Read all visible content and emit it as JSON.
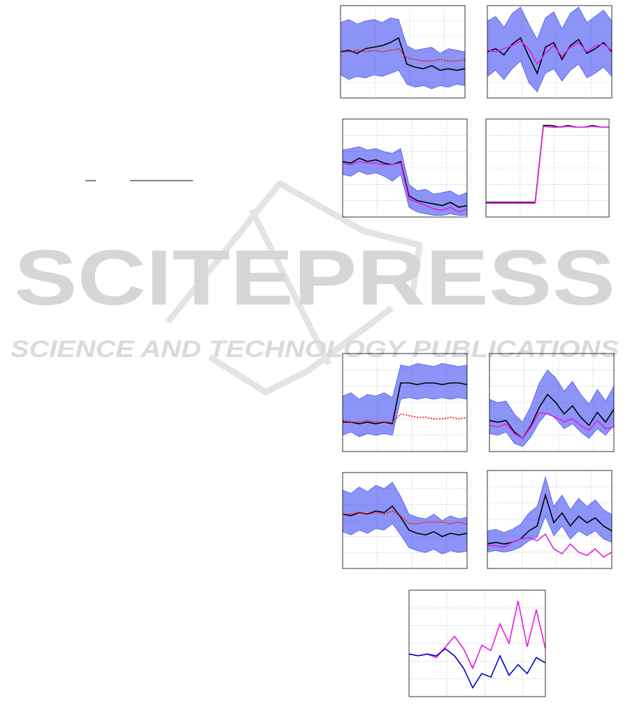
{
  "watermark": {
    "title": "SCITEPRESS",
    "subtitle": "SCIENCE AND TECHNOLOGY PUBLICATIONS"
  },
  "chart_data": [
    {
      "type": "line",
      "xlim": [
        0,
        3.6
      ],
      "ylim": [
        0,
        6
      ],
      "xticks": [
        1,
        2,
        3
      ],
      "yticks": [
        1,
        2,
        3,
        4,
        5
      ],
      "grid": true,
      "x": [
        0,
        0.24,
        0.48,
        0.72,
        0.96,
        1.2,
        1.44,
        1.68,
        1.92,
        2.16,
        2.4,
        2.64,
        2.88,
        3.12,
        3.36,
        3.6
      ],
      "bands": [
        {
          "color": "#2f3cf0",
          "lower": [
            1.5,
            1.2,
            1.4,
            1.3,
            1.5,
            1.4,
            1.6,
            1.8,
            0.9,
            0.7,
            0.8,
            0.6,
            0.8,
            0.7,
            0.9,
            0.8
          ],
          "upper": [
            4.9,
            5.1,
            4.8,
            5.0,
            5.1,
            4.9,
            5.2,
            5.1,
            3.4,
            3.1,
            3.2,
            3.3,
            2.9,
            3.2,
            3.1,
            3.0
          ]
        }
      ],
      "series": [
        {
          "color": "#000000",
          "values": [
            3,
            3.1,
            2.9,
            3.2,
            3.3,
            3.4,
            3.6,
            3.9,
            2.2,
            2.0,
            1.9,
            2.1,
            1.8,
            1.9,
            1.8,
            1.9
          ]
        },
        {
          "color": "#ff0000",
          "dashed": true,
          "values": [
            3,
            3.0,
            3.1,
            3.0,
            3.1,
            3.0,
            3.1,
            3.2,
            2.6,
            2.5,
            2.4,
            2.4,
            2.5,
            2.4,
            2.4,
            2.5
          ]
        }
      ]
    },
    {
      "type": "line",
      "xlim": [
        0,
        3.6
      ],
      "ylim": [
        0,
        6
      ],
      "xticks": [
        1,
        2,
        3
      ],
      "yticks": [
        1,
        2,
        3,
        4,
        5
      ],
      "grid": true,
      "x": [
        0,
        0.24,
        0.48,
        0.72,
        0.96,
        1.2,
        1.44,
        1.68,
        1.92,
        2.16,
        2.4,
        2.64,
        2.88,
        3.12,
        3.36,
        3.6
      ],
      "bands": [
        {
          "color": "#2f3cf0",
          "lower": [
            1.4,
            1.8,
            1.2,
            1.9,
            2.4,
            1.0,
            0.4,
            1.6,
            1.9,
            1.1,
            1.8,
            2.2,
            1.3,
            1.6,
            2.0,
            1.4
          ],
          "upper": [
            5.0,
            5.3,
            4.6,
            5.5,
            5.9,
            4.8,
            3.8,
            5.2,
            5.6,
            4.5,
            5.5,
            5.9,
            4.9,
            5.3,
            5.7,
            5.0
          ]
        }
      ],
      "series": [
        {
          "color": "#000000",
          "values": [
            3,
            3.2,
            2.8,
            3.5,
            3.9,
            2.7,
            1.6,
            3.3,
            3.6,
            2.5,
            3.4,
            3.8,
            2.9,
            3.2,
            3.6,
            3.0
          ]
        },
        {
          "color": "#e020e0",
          "values": [
            3.1,
            3.0,
            3.2,
            3.4,
            3.7,
            3.2,
            2.2,
            2.9,
            3.4,
            2.7,
            3.3,
            3.6,
            3.0,
            3.4,
            3.5,
            3.1
          ]
        }
      ]
    },
    {
      "type": "line",
      "xlim": [
        0,
        3.6
      ],
      "ylim": [
        0,
        6
      ],
      "xticks": [
        1,
        2,
        3
      ],
      "yticks": [
        1,
        2,
        3,
        4,
        5
      ],
      "grid": true,
      "x": [
        0,
        0.24,
        0.48,
        0.72,
        0.96,
        1.2,
        1.44,
        1.68,
        1.92,
        2.16,
        2.4,
        2.64,
        2.88,
        3.12,
        3.36,
        3.6
      ],
      "bands": [
        {
          "color": "#2f3cf0",
          "lower": [
            2.6,
            2.5,
            2.8,
            2.6,
            2.7,
            2.5,
            2.2,
            2.6,
            0.6,
            0.3,
            0.2,
            0.1,
            0.1,
            0.2,
            0.1,
            0.1
          ],
          "upper": [
            4.1,
            4.2,
            4.3,
            4.1,
            4.2,
            4.0,
            3.9,
            4.2,
            2.0,
            1.6,
            1.7,
            1.4,
            1.5,
            1.6,
            1.3,
            1.5
          ]
        }
      ],
      "series": [
        {
          "color": "#000000",
          "values": [
            3.4,
            3.3,
            3.6,
            3.4,
            3.5,
            3.3,
            3.2,
            3.4,
            1.3,
            1.0,
            0.9,
            0.8,
            0.7,
            0.9,
            0.6,
            0.7
          ]
        },
        {
          "color": "#e020e0",
          "values": [
            3.3,
            3.2,
            3.4,
            3.3,
            3.3,
            3.2,
            3.2,
            3.3,
            1.1,
            0.9,
            0.7,
            0.5,
            0.4,
            0.6,
            0.3,
            0.5
          ]
        }
      ]
    },
    {
      "type": "line",
      "xlim": [
        0,
        3.6
      ],
      "ylim": [
        0,
        6
      ],
      "xticks": [
        1,
        2,
        3
      ],
      "yticks": [
        1,
        2,
        3,
        4,
        5
      ],
      "grid": true,
      "x": [
        0,
        0.24,
        0.48,
        0.72,
        0.96,
        1.2,
        1.44,
        1.68,
        1.92,
        2.16,
        2.4,
        2.64,
        2.88,
        3.12,
        3.36,
        3.6
      ],
      "bands": [],
      "series": [
        {
          "color": "#000000",
          "values": [
            0.9,
            0.9,
            0.9,
            0.9,
            0.9,
            0.9,
            0.9,
            5.6,
            5.6,
            5.5,
            5.6,
            5.5,
            5.5,
            5.6,
            5.5,
            5.5
          ]
        },
        {
          "color": "#e020e0",
          "values": [
            0.85,
            0.85,
            0.85,
            0.85,
            0.85,
            0.85,
            0.85,
            5.55,
            5.5,
            5.5,
            5.55,
            5.5,
            5.5,
            5.55,
            5.5,
            5.5
          ]
        }
      ]
    },
    {
      "type": "line",
      "xlim": [
        0,
        3.6
      ],
      "ylim": [
        0,
        6
      ],
      "xticks": [
        1,
        2,
        3
      ],
      "yticks": [
        1,
        2,
        3,
        4,
        5
      ],
      "grid": true,
      "x": [
        0,
        0.24,
        0.48,
        0.72,
        0.96,
        1.2,
        1.44,
        1.68,
        1.92,
        2.16,
        2.4,
        2.64,
        2.88,
        3.12,
        3.36,
        3.6
      ],
      "bands": [
        {
          "color": "#2f3cf0",
          "lower": [
            1.0,
            1.2,
            0.9,
            1.1,
            1.0,
            1.1,
            1.0,
            3.2,
            3.3,
            3.2,
            3.3,
            3.2,
            3.3,
            3.2,
            3.3,
            3.2
          ],
          "upper": [
            3.4,
            3.6,
            3.2,
            3.5,
            3.4,
            3.6,
            3.3,
            5.3,
            5.2,
            5.4,
            5.3,
            5.2,
            5.4,
            5.3,
            5.2,
            5.3
          ]
        }
      ],
      "series": [
        {
          "color": "#000000",
          "values": [
            1.8,
            1.8,
            1.7,
            1.8,
            1.7,
            1.8,
            1.7,
            4.2,
            4.2,
            4.1,
            4.2,
            4.2,
            4.1,
            4.2,
            4.2,
            4.1
          ]
        },
        {
          "color": "#ff0000",
          "dashed": true,
          "values": [
            1.9,
            1.8,
            1.8,
            1.9,
            1.8,
            1.8,
            1.8,
            2.3,
            2.2,
            2.1,
            2.1,
            2.0,
            2.0,
            2.1,
            2.0,
            2.1
          ]
        }
      ]
    },
    {
      "type": "line",
      "xlim": [
        0,
        3.6
      ],
      "ylim": [
        0,
        6
      ],
      "xticks": [
        1,
        2,
        3
      ],
      "yticks": [
        1,
        2,
        3,
        4,
        5
      ],
      "grid": true,
      "x": [
        0,
        0.24,
        0.48,
        0.72,
        0.96,
        1.2,
        1.44,
        1.68,
        1.92,
        2.16,
        2.4,
        2.64,
        2.88,
        3.12,
        3.36,
        3.6
      ],
      "bands": [
        {
          "color": "#2f3cf0",
          "lower": [
            1.1,
            1.0,
            1.2,
            0.5,
            0.3,
            0.9,
            1.8,
            2.4,
            2.0,
            1.4,
            1.7,
            1.2,
            0.8,
            1.4,
            1.0,
            1.6
          ],
          "upper": [
            3.2,
            3.0,
            3.1,
            2.3,
            1.8,
            2.8,
            4.2,
            5.0,
            4.5,
            3.7,
            4.3,
            3.5,
            2.9,
            3.8,
            3.1,
            4.0
          ]
        }
      ],
      "series": [
        {
          "color": "#000000",
          "values": [
            1.9,
            1.8,
            1.9,
            1.2,
            0.8,
            1.6,
            2.7,
            3.5,
            3.0,
            2.3,
            2.8,
            2.1,
            1.6,
            2.4,
            1.8,
            2.6
          ]
        },
        {
          "color": "#e020e0",
          "values": [
            1.6,
            1.5,
            1.7,
            1.1,
            0.8,
            1.5,
            2.4,
            2.3,
            2.1,
            1.8,
            2.0,
            1.6,
            1.3,
            1.9,
            1.4,
            1.5
          ]
        }
      ]
    },
    {
      "type": "line",
      "xlim": [
        0,
        3.6
      ],
      "ylim": [
        0,
        6
      ],
      "xticks": [
        1,
        2,
        3
      ],
      "yticks": [
        1,
        2,
        3,
        4,
        5
      ],
      "grid": true,
      "x": [
        0,
        0.24,
        0.48,
        0.72,
        0.96,
        1.2,
        1.44,
        1.68,
        1.92,
        2.16,
        2.4,
        2.64,
        2.88,
        3.12,
        3.36,
        3.6
      ],
      "bands": [
        {
          "color": "#2f3cf0",
          "lower": [
            2.3,
            2.1,
            2.4,
            2.2,
            2.5,
            2.4,
            2.8,
            2.1,
            1.3,
            1.1,
            1.0,
            1.2,
            0.9,
            1.1,
            1.0,
            1.1
          ],
          "upper": [
            4.9,
            4.7,
            5.1,
            4.8,
            5.2,
            5.0,
            5.4,
            4.5,
            3.4,
            3.2,
            3.1,
            3.4,
            3.0,
            3.3,
            3.1,
            3.2
          ]
        }
      ],
      "series": [
        {
          "color": "#000000",
          "values": [
            3.4,
            3.3,
            3.5,
            3.4,
            3.6,
            3.5,
            3.9,
            3.2,
            2.4,
            2.2,
            2.1,
            2.3,
            2.0,
            2.2,
            2.1,
            2.2
          ]
        },
        {
          "color": "#ff0000",
          "dashed": true,
          "values": [
            3.4,
            3.4,
            3.5,
            3.4,
            3.5,
            3.4,
            3.6,
            3.3,
            2.8,
            2.8,
            2.9,
            2.9,
            2.9,
            2.8,
            2.9,
            2.8
          ]
        }
      ]
    },
    {
      "type": "line",
      "xlim": [
        0,
        3.6
      ],
      "ylim": [
        0,
        6
      ],
      "xticks": [
        1,
        2,
        3
      ],
      "yticks": [
        1,
        2,
        3,
        4,
        5
      ],
      "grid": true,
      "x": [
        0,
        0.24,
        0.48,
        0.72,
        0.96,
        1.2,
        1.44,
        1.68,
        1.92,
        2.16,
        2.4,
        2.64,
        2.88,
        3.12,
        3.36,
        3.6
      ],
      "bands": [
        {
          "color": "#2f3cf0",
          "lower": [
            1.0,
            1.1,
            1.0,
            1.1,
            1.3,
            1.7,
            1.9,
            3.2,
            2.0,
            2.6,
            1.8,
            2.3,
            2.0,
            2.3,
            1.8,
            1.6
          ],
          "upper": [
            2.3,
            2.4,
            2.2,
            2.4,
            2.7,
            3.4,
            3.8,
            5.6,
            3.8,
            4.5,
            3.6,
            4.3,
            3.8,
            4.2,
            3.6,
            3.3
          ]
        }
      ],
      "series": [
        {
          "color": "#000000",
          "values": [
            1.5,
            1.6,
            1.5,
            1.6,
            1.8,
            2.3,
            2.6,
            4.5,
            2.8,
            3.4,
            2.6,
            3.2,
            2.8,
            3.1,
            2.6,
            2.3
          ]
        },
        {
          "color": "#e020e0",
          "values": [
            1.4,
            1.4,
            1.3,
            1.6,
            1.8,
            1.9,
            1.7,
            2.1,
            1.2,
            0.9,
            1.5,
            1.0,
            0.8,
            1.2,
            0.7,
            1.0
          ]
        }
      ]
    },
    {
      "type": "line",
      "xlim": [
        0,
        3.6
      ],
      "ylim": [
        0,
        6
      ],
      "xticks": [
        1,
        2,
        3
      ],
      "yticks": [
        1,
        2,
        3,
        4,
        5
      ],
      "grid": true,
      "x": [
        0,
        0.24,
        0.48,
        0.72,
        0.96,
        1.2,
        1.44,
        1.68,
        1.92,
        2.16,
        2.4,
        2.64,
        2.88,
        3.12,
        3.36,
        3.6
      ],
      "bands": [],
      "series": [
        {
          "color": "#e020e0",
          "values": [
            2.4,
            2.3,
            2.4,
            2.2,
            2.8,
            3.4,
            2.7,
            1.6,
            2.9,
            2.6,
            4.1,
            3.0,
            5.4,
            2.8,
            4.9,
            2.7
          ]
        },
        {
          "color": "#0000cc",
          "values": [
            2.4,
            2.3,
            2.4,
            2.3,
            2.7,
            2.3,
            1.6,
            0.5,
            1.3,
            1.1,
            2.3,
            1.2,
            1.8,
            1.3,
            2.2,
            1.9
          ]
        }
      ]
    }
  ]
}
